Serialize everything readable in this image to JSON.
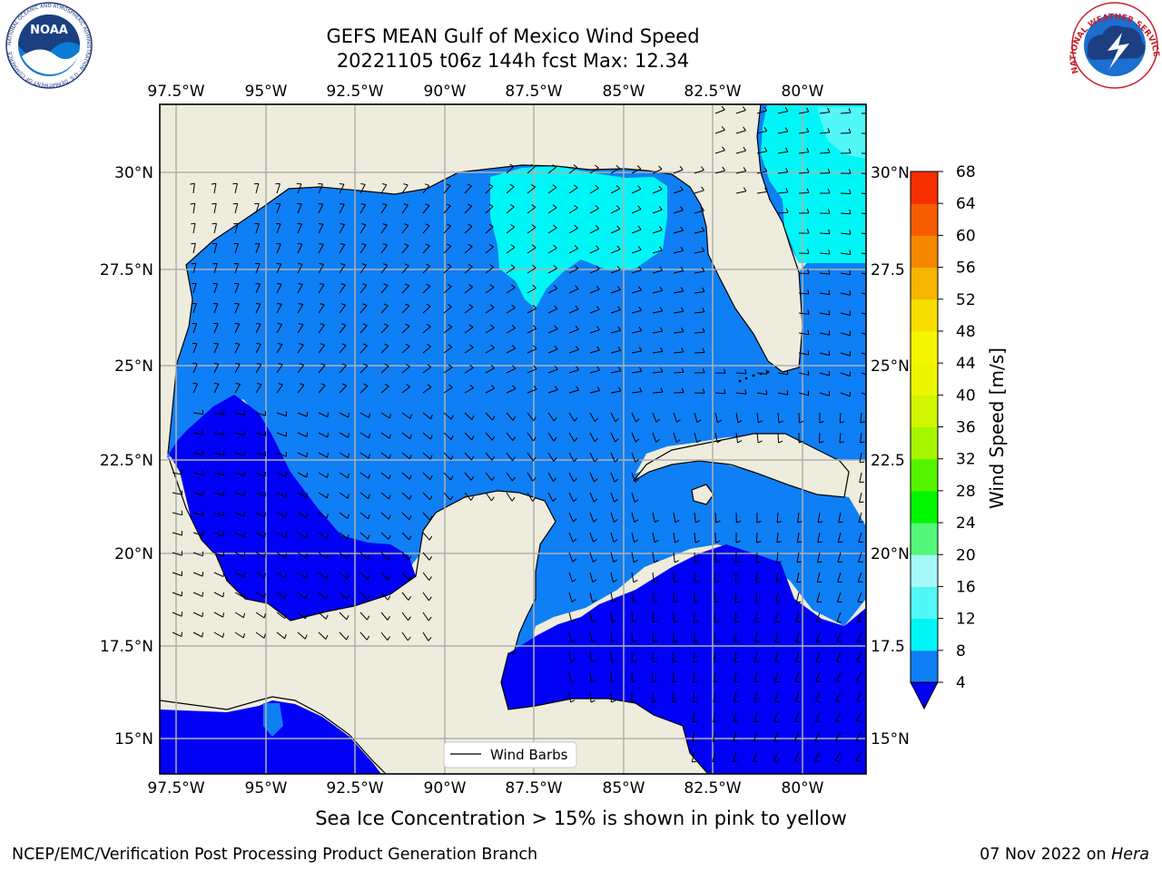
{
  "title": {
    "line1": "GEFS MEAN Gulf of Mexico Wind Speed",
    "line2": "20221105 t06z 144h fcst   Max: 12.34"
  },
  "logos": {
    "left": {
      "icon": "noaa-logo",
      "text": "NOAA",
      "ring": "NATIONAL OCEANIC AND ATMOSPHERIC ADMINISTRATION · U.S. DEPARTMENT OF COMMERCE"
    },
    "right": {
      "icon": "nws-logo",
      "ring": "NATIONAL WEATHER SERVICE"
    }
  },
  "map": {
    "lon_ticks_top": [
      "97.5°W",
      "95°W",
      "92.5°W",
      "90°W",
      "87.5°W",
      "85°W",
      "82.5°W",
      "80°W"
    ],
    "lon_ticks_bottom": [
      "97.5°W",
      "95°W",
      "92.5°W",
      "90°W",
      "87.5°W",
      "85°W",
      "82.5°W",
      "80°W"
    ],
    "lat_ticks_left": [
      "30°N",
      "27.5°N",
      "25°N",
      "22.5°N",
      "20°N",
      "17.5°N",
      "15°N"
    ],
    "lat_ticks_right": [
      "30°N",
      "27.5",
      "25°N",
      "22.5",
      "20°N",
      "17.5",
      "15°N"
    ],
    "legend_label": "Wind Barbs",
    "colors": {
      "land": "#eeecdc",
      "ocean_4_8": "#0f7ff5",
      "ocean_0_4": "#0000f5",
      "ocean_8_12": "#00f6f6",
      "ocean_12_16": "#52f7f7",
      "grid": "#b0b0b0"
    }
  },
  "colorbar": {
    "label": "Wind Speed [m/s]",
    "ticks": [
      "4",
      "8",
      "12",
      "16",
      "20",
      "24",
      "28",
      "32",
      "36",
      "40",
      "44",
      "48",
      "52",
      "56",
      "60",
      "64",
      "68"
    ],
    "colors": [
      "#0f7ff5",
      "#00f6f6",
      "#52f7f7",
      "#a6f8f8",
      "#55f77a",
      "#00f700",
      "#55f500",
      "#a5f500",
      "#cff500",
      "#eef500",
      "#f6f600",
      "#f6de00",
      "#f6b500",
      "#f68800",
      "#f65c00",
      "#f62e00"
    ],
    "under_color": "#0000f5"
  },
  "note": "Sea Ice Concentration > 15% is shown in pink to yellow",
  "footer": {
    "left": "NCEP/EMC/Verification Post Processing Product Generation Branch",
    "right_prefix": "07 Nov 2022 on ",
    "right_host": "Hera"
  }
}
